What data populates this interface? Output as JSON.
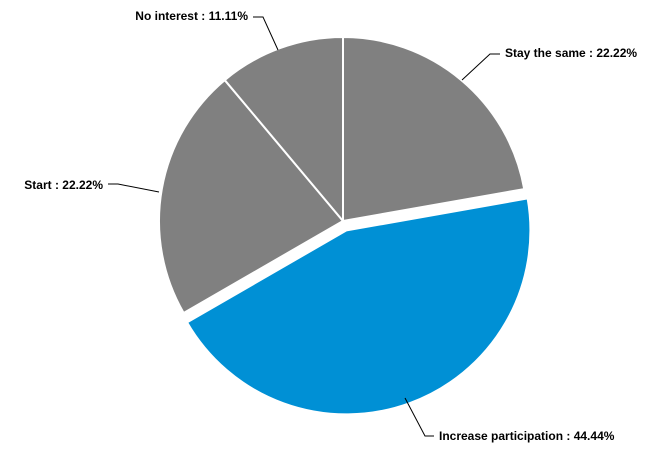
{
  "chart_data": {
    "type": "pie",
    "title": "",
    "legend": "none",
    "slices": [
      {
        "label": "Stay the same",
        "value": 22.22,
        "display": "Stay the same : 22.22%",
        "color": "#808080",
        "exploded": false
      },
      {
        "label": "Increase participation",
        "value": 44.44,
        "display": "Increase participation : 44.44%",
        "color": "#0090d5",
        "exploded": true
      },
      {
        "label": "Start",
        "value": 22.22,
        "display": "Start : 22.22%",
        "color": "#808080",
        "exploded": false
      },
      {
        "label": "No interest",
        "value": 11.11,
        "display": "No interest : 11.11%",
        "color": "#808080",
        "exploded": false
      }
    ]
  }
}
